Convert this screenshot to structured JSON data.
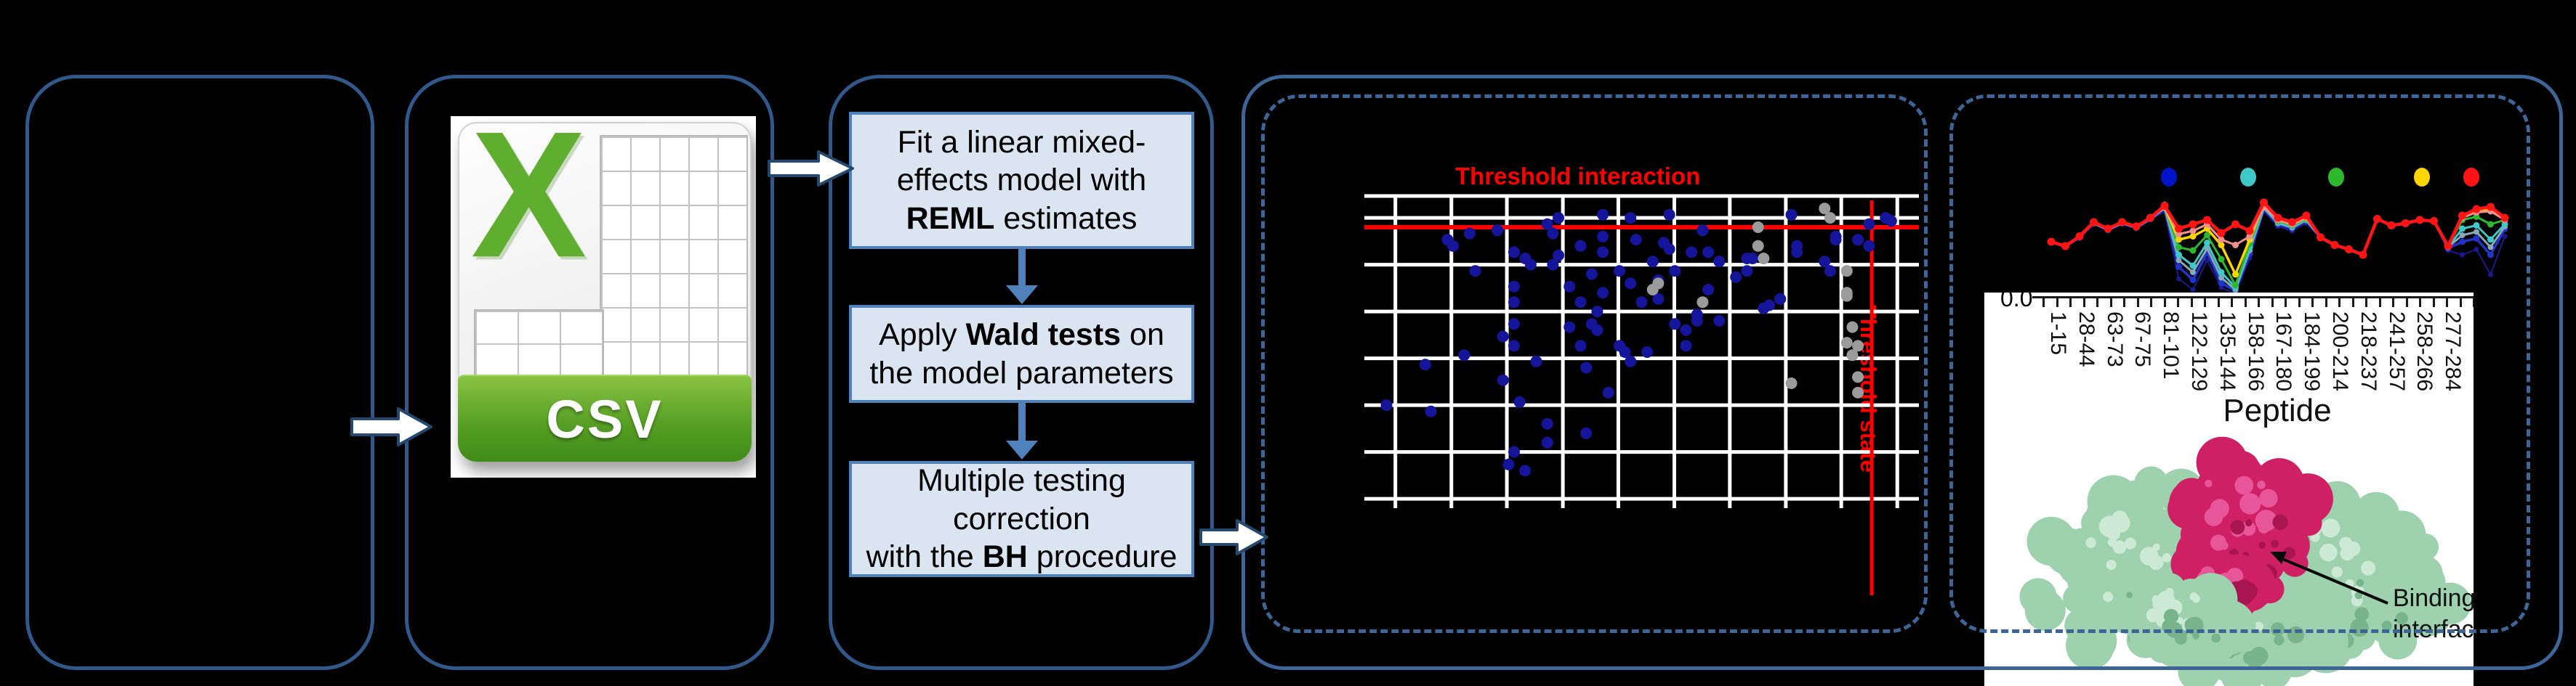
{
  "panels": {
    "input_panel": {
      "note": ""
    },
    "csv_panel": {
      "x_letter": "X",
      "csv_label": "CSV"
    },
    "workflow": {
      "steps": [
        {
          "segments": [
            {
              "text": "Fit a linear mixed-\neffects model with\n"
            },
            {
              "text": "REML",
              "bold": true
            },
            {
              "text": " estimates"
            }
          ]
        },
        {
          "segments": [
            {
              "text": "Apply "
            },
            {
              "text": "Wald tests",
              "bold": true
            },
            {
              "text": " on\nthe model parameters"
            }
          ]
        },
        {
          "segments": [
            {
              "text": "Multiple testing\ncorrection\nwith the "
            },
            {
              "text": "BH",
              "bold": true
            },
            {
              "text": " procedure"
            }
          ]
        }
      ]
    }
  },
  "chart_data": [
    {
      "id": "threshold_scatter",
      "type": "scatter",
      "title": "Threshold interaction",
      "right_label": "Threshold state",
      "grid_on": true,
      "colors": {
        "grid": "#ffffff",
        "threshold": "#ff0000",
        "blue_point": "#15159c",
        "gray_point": "#9b9b9b"
      },
      "grid_v_pct": [
        5.6,
        15.7,
        25.7,
        35.8,
        45.8,
        55.9,
        65.9,
        76.0,
        86.0,
        96.1
      ],
      "grid_h_pct": [
        0,
        7,
        22,
        37,
        52,
        67,
        82,
        97
      ],
      "threshold_h_pct": 10,
      "threshold_v_pct": 91.5,
      "series": [
        {
          "name": "interaction-points",
          "color": "#15159c",
          "points_pct": [
            [
              15,
              14
            ],
            [
              16,
              16
            ],
            [
              19,
              12
            ],
            [
              20,
              24
            ],
            [
              24,
              11
            ],
            [
              27,
              18
            ],
            [
              29,
              20
            ],
            [
              30,
              22
            ],
            [
              27,
              29
            ],
            [
              27,
              34
            ],
            [
              27,
              41
            ],
            [
              25,
              45
            ],
            [
              27,
              48
            ],
            [
              18,
              51
            ],
            [
              11,
              54
            ],
            [
              25,
              59
            ],
            [
              28,
              66
            ],
            [
              33,
              73
            ],
            [
              33,
              79
            ],
            [
              27,
              82
            ],
            [
              26,
              86
            ],
            [
              29,
              88
            ],
            [
              4,
              67
            ],
            [
              12,
              69
            ],
            [
              31,
              53
            ],
            [
              33,
              9
            ],
            [
              35,
              7
            ],
            [
              34,
              12
            ],
            [
              35,
              19
            ],
            [
              34,
              22
            ],
            [
              37,
              42
            ],
            [
              37,
              29
            ],
            [
              39,
              16
            ],
            [
              39,
              34
            ],
            [
              39,
              48
            ],
            [
              40,
              55
            ],
            [
              40,
              76
            ],
            [
              41,
              25
            ],
            [
              41,
              41
            ],
            [
              42,
              37
            ],
            [
              42,
              43
            ],
            [
              43,
              6
            ],
            [
              43,
              13
            ],
            [
              43,
              18
            ],
            [
              43,
              31
            ],
            [
              44,
              63
            ],
            [
              46,
              24
            ],
            [
              46,
              48
            ],
            [
              47,
              50
            ],
            [
              48,
              28
            ],
            [
              48,
              53
            ],
            [
              48,
              7
            ],
            [
              49,
              14
            ],
            [
              50,
              34
            ],
            [
              51,
              50
            ],
            [
              52,
              21
            ],
            [
              53,
              27
            ],
            [
              53,
              33
            ],
            [
              54,
              15
            ],
            [
              55,
              17
            ],
            [
              55,
              6
            ],
            [
              56,
              24
            ],
            [
              56,
              41
            ],
            [
              58,
              43
            ],
            [
              58,
              48
            ],
            [
              59,
              18
            ],
            [
              60,
              38
            ],
            [
              60,
              40
            ],
            [
              61,
              11
            ],
            [
              62,
              18
            ],
            [
              62,
              30
            ],
            [
              64,
              21
            ],
            [
              64,
              40
            ],
            [
              67,
              26
            ],
            [
              69,
              24
            ],
            [
              69,
              20
            ],
            [
              70,
              20
            ],
            [
              72,
              36
            ],
            [
              73,
              35
            ],
            [
              75,
              33
            ],
            [
              77,
              6
            ],
            [
              78,
              16
            ],
            [
              78,
              18
            ],
            [
              83,
              21
            ],
            [
              84,
              24
            ],
            [
              85,
              13
            ],
            [
              85,
              14
            ],
            [
              89,
              14
            ],
            [
              91,
              16
            ],
            [
              91,
              9
            ],
            [
              94,
              7
            ],
            [
              95,
              8
            ]
          ]
        },
        {
          "name": "state-points",
          "color": "#9b9b9b",
          "points_pct": [
            [
              83,
              4
            ],
            [
              84,
              7
            ],
            [
              71,
              10
            ],
            [
              71,
              16
            ],
            [
              72,
              20
            ],
            [
              77,
              60
            ],
            [
              87,
              24
            ],
            [
              87,
              31
            ],
            [
              87,
              32
            ],
            [
              88,
              42
            ],
            [
              87,
              47
            ],
            [
              89,
              48
            ],
            [
              88,
              51
            ],
            [
              89,
              58
            ],
            [
              89,
              63
            ],
            [
              53,
              28
            ],
            [
              52,
              30
            ],
            [
              61,
              34
            ]
          ]
        }
      ]
    },
    {
      "id": "uptake_plot",
      "type": "line",
      "xlabel": "Peptide",
      "y_tick": "0.0",
      "legend_dot_colors": [
        "#0014cc",
        "#3fc8c8",
        "#2db82d",
        "#ffd400",
        "#ff1414"
      ],
      "x_tick_labels": [
        "1-15",
        "28-44",
        "63-73",
        "67-75",
        "81-101",
        "122-129",
        "135-144",
        "158-166",
        "167-180",
        "184-199",
        "200-214",
        "218-237",
        "241-257",
        "258-266",
        "277-284"
      ],
      "series": [
        {
          "name": "t-navy",
          "color": "#1a1a8f",
          "width": 2,
          "marker": 3.5,
          "values": [
            0.49,
            0.45,
            0.53,
            0.66,
            0.6,
            0.66,
            0.62,
            0.7,
            0.78,
            0.16,
            0.06,
            0.33,
            0.08,
            0.02,
            0.35,
            0.78,
            0.64,
            0.6,
            0.67,
            0.53,
            0.46,
            0.42,
            0.37,
            0.7,
            0.64,
            0.66,
            0.69,
            0.68,
            0.42,
            0.38,
            0.43,
            0.2,
            0.55
          ]
        },
        {
          "name": "t-blue",
          "color": "#2233cc",
          "width": 3.5,
          "marker": 4.5,
          "values": [
            0.5,
            0.46,
            0.54,
            0.67,
            0.61,
            0.67,
            0.63,
            0.71,
            0.8,
            0.27,
            0.15,
            0.4,
            0.12,
            0.05,
            0.39,
            0.8,
            0.66,
            0.62,
            0.69,
            0.54,
            0.47,
            0.43,
            0.38,
            0.71,
            0.65,
            0.67,
            0.7,
            0.69,
            0.44,
            0.5,
            0.53,
            0.38,
            0.62
          ]
        },
        {
          "name": "t-slate",
          "color": "#86a8b9",
          "width": 3,
          "marker": 4,
          "values": [
            0.5,
            0.46,
            0.55,
            0.67,
            0.61,
            0.67,
            0.63,
            0.71,
            0.81,
            0.33,
            0.22,
            0.44,
            0.17,
            0.06,
            0.42,
            0.81,
            0.67,
            0.63,
            0.7,
            0.54,
            0.47,
            0.43,
            0.38,
            0.71,
            0.65,
            0.67,
            0.7,
            0.69,
            0.45,
            0.56,
            0.59,
            0.45,
            0.64
          ]
        },
        {
          "name": "t-cyan",
          "color": "#3fc8c8",
          "width": 3,
          "marker": 4.5,
          "values": [
            0.5,
            0.46,
            0.55,
            0.68,
            0.62,
            0.68,
            0.64,
            0.72,
            0.84,
            0.38,
            0.28,
            0.49,
            0.22,
            0.08,
            0.45,
            0.82,
            0.68,
            0.64,
            0.7,
            0.54,
            0.47,
            0.43,
            0.38,
            0.71,
            0.65,
            0.67,
            0.7,
            0.69,
            0.45,
            0.62,
            0.65,
            0.52,
            0.66
          ]
        },
        {
          "name": "t-green",
          "color": "#2db82d",
          "width": 3,
          "marker": 4.5,
          "values": [
            0.5,
            0.46,
            0.55,
            0.68,
            0.62,
            0.68,
            0.64,
            0.72,
            0.82,
            0.45,
            0.42,
            0.56,
            0.34,
            0.1,
            0.48,
            0.83,
            0.69,
            0.65,
            0.71,
            0.54,
            0.47,
            0.43,
            0.38,
            0.71,
            0.65,
            0.67,
            0.7,
            0.69,
            0.46,
            0.7,
            0.73,
            0.66,
            0.7
          ]
        },
        {
          "name": "t-yellow",
          "color": "#ffd400",
          "width": 3.5,
          "marker": 4.5,
          "values": [
            0.5,
            0.46,
            0.55,
            0.68,
            0.62,
            0.68,
            0.64,
            0.72,
            0.82,
            0.52,
            0.55,
            0.62,
            0.47,
            0.2,
            0.52,
            0.84,
            0.7,
            0.66,
            0.72,
            0.54,
            0.47,
            0.43,
            0.38,
            0.71,
            0.65,
            0.67,
            0.7,
            0.69,
            0.46,
            0.73,
            0.78,
            0.8,
            0.71
          ]
        },
        {
          "name": "t-salmon",
          "color": "#f29090",
          "width": 3,
          "marker": 4.5,
          "values": [
            0.5,
            0.46,
            0.55,
            0.68,
            0.62,
            0.68,
            0.64,
            0.72,
            0.82,
            0.57,
            0.6,
            0.66,
            0.52,
            0.47,
            0.55,
            0.82,
            0.7,
            0.66,
            0.72,
            0.54,
            0.47,
            0.43,
            0.38,
            0.71,
            0.65,
            0.67,
            0.7,
            0.69,
            0.46,
            0.72,
            0.77,
            0.78,
            0.7
          ]
        },
        {
          "name": "t-red",
          "color": "#ff1414",
          "width": 4.5,
          "marker": 5.5,
          "values": [
            0.5,
            0.46,
            0.55,
            0.68,
            0.62,
            0.68,
            0.64,
            0.72,
            0.83,
            0.62,
            0.66,
            0.7,
            0.58,
            0.66,
            0.6,
            0.86,
            0.72,
            0.68,
            0.74,
            0.54,
            0.47,
            0.43,
            0.38,
            0.71,
            0.65,
            0.67,
            0.7,
            0.69,
            0.46,
            0.74,
            0.8,
            0.82,
            0.72
          ]
        }
      ],
      "annotation": {
        "line1": "Binding",
        "line2": "interface"
      }
    }
  ]
}
